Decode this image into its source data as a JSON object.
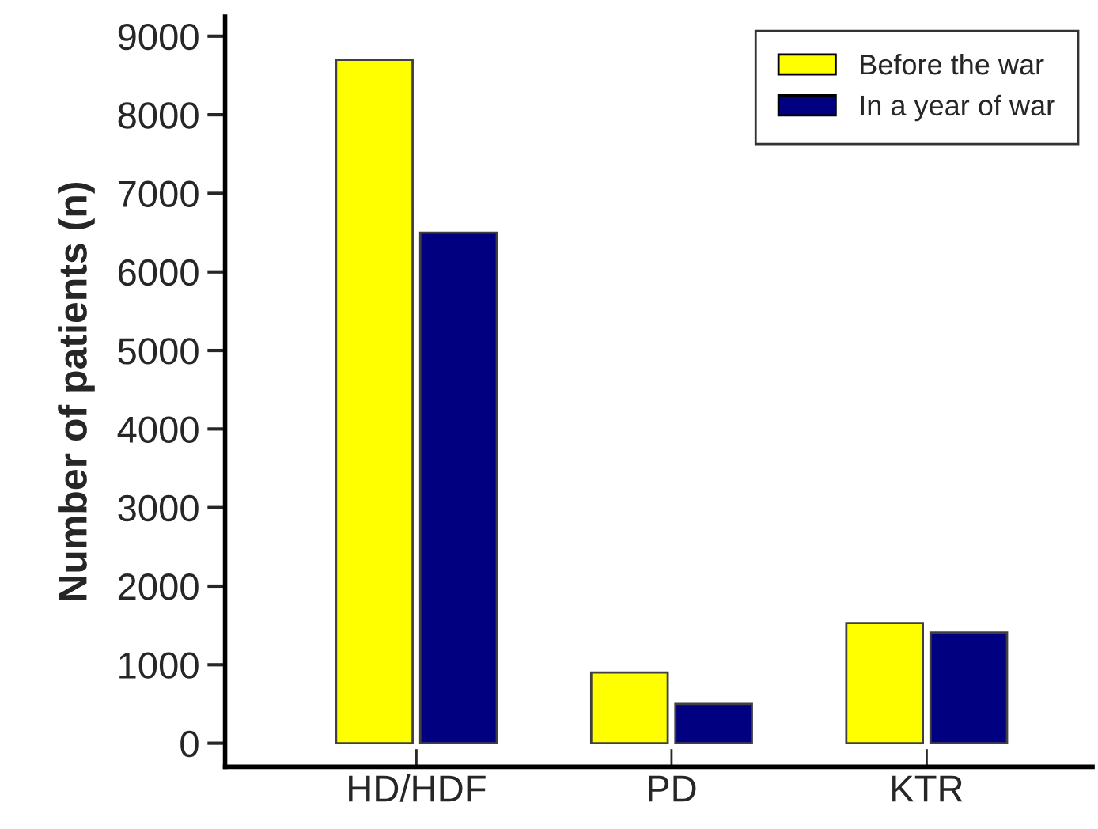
{
  "chart_data": {
    "type": "bar",
    "ylabel": "Number of patients (n)",
    "categories": [
      "HD/HDF",
      "PD",
      "KTR"
    ],
    "series": [
      {
        "name": "Before the war",
        "color": "#ffff00",
        "values": [
          8700,
          900,
          1530
        ]
      },
      {
        "name": "In a year of war",
        "color": "#000080",
        "values": [
          6500,
          500,
          1410
        ]
      }
    ],
    "ylim": [
      -300,
      9250
    ],
    "yticks": [
      0,
      1000,
      2000,
      3000,
      4000,
      5000,
      6000,
      7000,
      8000,
      9000
    ],
    "grid": false,
    "legend": "top right"
  }
}
